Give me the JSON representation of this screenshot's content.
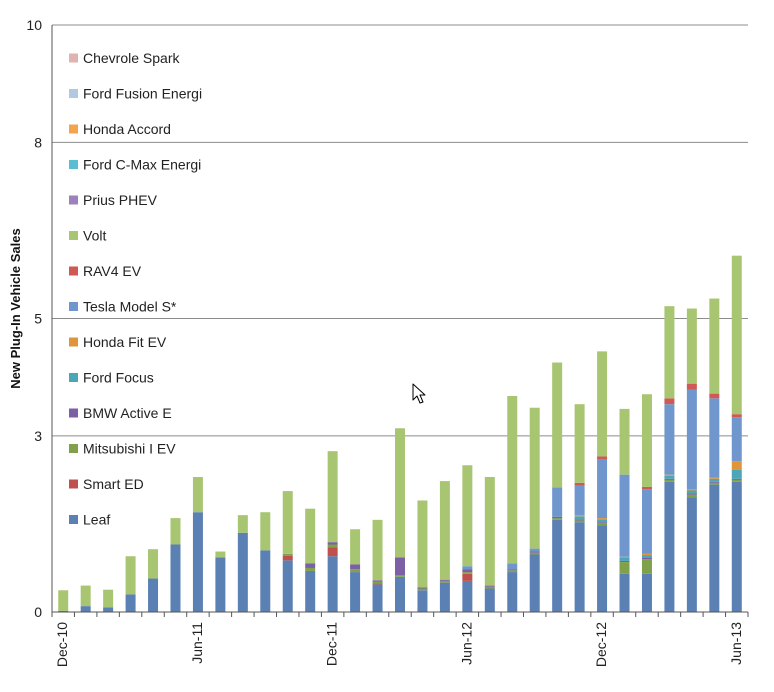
{
  "chart_data": {
    "type": "bar",
    "stacked": true,
    "title": "",
    "xlabel": "",
    "ylabel": "New Plug-In Vehicle Sales",
    "ylim": [
      0,
      10
    ],
    "yticks": [
      0,
      3,
      5,
      8,
      10
    ],
    "ytick_labels": [
      "0",
      "3",
      "5",
      "8",
      "10"
    ],
    "grid": "horizontal",
    "legend_position": "top-left",
    "categories": [
      "Dec-10",
      "Jan-11",
      "Feb-11",
      "Mar-11",
      "Apr-11",
      "May-11",
      "Jun-11",
      "Jul-11",
      "Aug-11",
      "Sep-11",
      "Oct-11",
      "Nov-11",
      "Dec-11",
      "Jan-12",
      "Feb-12",
      "Mar-12",
      "Apr-12",
      "May-12",
      "Jun-12",
      "Jul-12",
      "Aug-12",
      "Sep-12",
      "Oct-12",
      "Nov-12",
      "Dec-12",
      "Jan-13",
      "Feb-13",
      "Mar-13",
      "Apr-13",
      "May-13",
      "Jun-13"
    ],
    "xtick_labels": [
      {
        "index": 0,
        "label": "Dec-10"
      },
      {
        "index": 6,
        "label": "Jun-11"
      },
      {
        "index": 12,
        "label": "Dec-11"
      },
      {
        "index": 18,
        "label": "Jun-12"
      },
      {
        "index": 24,
        "label": "Dec-12"
      },
      {
        "index": 30,
        "label": "Jun-13"
      }
    ],
    "series": [
      {
        "name": "Leaf",
        "color": "#5b80b4",
        "values": [
          0.02,
          0.1,
          0.08,
          0.3,
          0.57,
          1.15,
          1.7,
          0.93,
          1.35,
          1.05,
          0.88,
          0.7,
          0.95,
          0.68,
          0.47,
          0.6,
          0.37,
          0.5,
          0.53,
          0.4,
          0.68,
          0.98,
          1.57,
          1.53,
          1.48,
          0.65,
          0.65,
          2.22,
          1.95,
          2.17,
          2.22
        ]
      },
      {
        "name": "Smart ED",
        "color": "#c0504d",
        "values": [
          0,
          0,
          0,
          0,
          0,
          0,
          0,
          0,
          0,
          0,
          0.08,
          0,
          0.15,
          0,
          0.02,
          0,
          0,
          0,
          0.12,
          0,
          0,
          0,
          0,
          0,
          0,
          0,
          0,
          0,
          0,
          0,
          0
        ]
      },
      {
        "name": "Mitsubishi I EV",
        "color": "#7fa14a",
        "values": [
          0,
          0,
          0,
          0,
          0,
          0,
          0,
          0,
          0,
          0,
          0.03,
          0.05,
          0.05,
          0.05,
          0.03,
          0.03,
          0.03,
          0.03,
          0.03,
          0.03,
          0.03,
          0.03,
          0.03,
          0.03,
          0.03,
          0.2,
          0.25,
          0.03,
          0.05,
          0.03,
          0.03
        ]
      },
      {
        "name": "BMW Active E",
        "color": "#7d5fa6",
        "values": [
          0,
          0,
          0,
          0,
          0,
          0,
          0,
          0,
          0,
          0,
          0,
          0.08,
          0.04,
          0.08,
          0.02,
          0.3,
          0.02,
          0.02,
          0.05,
          0.02,
          0.02,
          0.02,
          0.02,
          0.02,
          0.02,
          0.02,
          0.02,
          0.02,
          0.02,
          0.02,
          0.02
        ]
      },
      {
        "name": "Ford Focus",
        "color": "#4ba7b7",
        "values": [
          0,
          0,
          0,
          0,
          0,
          0,
          0,
          0,
          0,
          0,
          0,
          0,
          0,
          0,
          0,
          0,
          0,
          0,
          0,
          0,
          0,
          0,
          0,
          0.05,
          0.05,
          0.05,
          0.05,
          0.05,
          0.05,
          0.05,
          0.15
        ]
      },
      {
        "name": "Honda Fit EV",
        "color": "#e0953a",
        "values": [
          0,
          0,
          0,
          0,
          0,
          0,
          0,
          0,
          0,
          0,
          0,
          0,
          0,
          0,
          0,
          0,
          0,
          0,
          0,
          0,
          0,
          0,
          0,
          0.02,
          0.02,
          0.02,
          0.02,
          0.02,
          0.02,
          0.02,
          0.15
        ]
      },
      {
        "name": "Tesla Model S*",
        "color": "#6f97cd",
        "values": [
          0,
          0,
          0,
          0,
          0,
          0,
          0,
          0,
          0,
          0,
          0,
          0,
          0,
          0,
          0,
          0,
          0,
          0,
          0.05,
          0,
          0.1,
          0.05,
          0.5,
          0.5,
          1.0,
          1.4,
          1.1,
          1.2,
          1.7,
          1.35,
          0.75
        ]
      },
      {
        "name": "RAV4 EV",
        "color": "#cf5a55",
        "values": [
          0,
          0,
          0,
          0,
          0,
          0,
          0,
          0,
          0,
          0,
          0,
          0,
          0,
          0,
          0,
          0,
          0,
          0,
          0,
          0,
          0,
          0,
          0,
          0.05,
          0.05,
          0,
          0.04,
          0.1,
          0.1,
          0.08,
          0.05
        ]
      },
      {
        "name": "Volt",
        "color": "#a8c672",
        "values": [
          0.35,
          0.35,
          0.3,
          0.65,
          0.5,
          0.45,
          0.6,
          0.1,
          0.3,
          0.65,
          1.07,
          0.93,
          1.55,
          0.6,
          1.03,
          2.2,
          1.48,
          1.68,
          1.72,
          1.85,
          2.85,
          2.4,
          2.13,
          1.34,
          1.79,
          1.12,
          1.58,
          1.57,
          1.28,
          1.62,
          2.7
        ]
      },
      {
        "name": "Prius PHEV",
        "color": "#9c82bd",
        "values": [
          0,
          0,
          0,
          0,
          0,
          0,
          0,
          0,
          0,
          0,
          0,
          0,
          0,
          0,
          0,
          0,
          0,
          0,
          0,
          0,
          0,
          0,
          0,
          0,
          0,
          0,
          0,
          0,
          0,
          0,
          0
        ]
      },
      {
        "name": "Ford C-Max Energi",
        "color": "#5bbdd1",
        "values": [
          0,
          0,
          0,
          0,
          0,
          0,
          0,
          0,
          0,
          0,
          0,
          0,
          0,
          0,
          0,
          0,
          0,
          0,
          0,
          0,
          0,
          0,
          0,
          0,
          0,
          0,
          0,
          0,
          0,
          0,
          0
        ]
      },
      {
        "name": "Honda Accord",
        "color": "#f4a44c",
        "values": [
          0,
          0,
          0,
          0,
          0,
          0,
          0,
          0,
          0,
          0,
          0,
          0,
          0,
          0,
          0,
          0,
          0,
          0,
          0,
          0,
          0,
          0,
          0,
          0,
          0,
          0,
          0,
          0,
          0,
          0,
          0
        ]
      },
      {
        "name": "Ford Fusion Energi",
        "color": "#b4c7e0",
        "values": [
          0,
          0,
          0,
          0,
          0,
          0,
          0,
          0,
          0,
          0,
          0,
          0,
          0,
          0,
          0,
          0,
          0,
          0,
          0,
          0,
          0,
          0,
          0,
          0,
          0,
          0,
          0,
          0,
          0,
          0,
          0
        ]
      },
      {
        "name": "Chevrole Spark",
        "color": "#e0b3b3",
        "values": [
          0,
          0,
          0,
          0,
          0,
          0,
          0,
          0,
          0,
          0,
          0,
          0,
          0,
          0,
          0,
          0,
          0,
          0,
          0,
          0,
          0,
          0,
          0,
          0,
          0,
          0,
          0,
          0,
          0,
          0,
          0
        ]
      }
    ],
    "legend": [
      {
        "label": "Chevrole Spark",
        "color": "#e0b3b3"
      },
      {
        "label": "Ford Fusion Energi",
        "color": "#b4c7e0"
      },
      {
        "label": "Honda Accord",
        "color": "#f4a44c"
      },
      {
        "label": "Ford C-Max Energi",
        "color": "#5bbdd1"
      },
      {
        "label": "Prius PHEV",
        "color": "#9c82bd"
      },
      {
        "label": "Volt",
        "color": "#a8c672"
      },
      {
        "label": "RAV4 EV",
        "color": "#cf5a55"
      },
      {
        "label": "Tesla Model S*",
        "color": "#6f97cd"
      },
      {
        "label": "Honda Fit EV",
        "color": "#e0953a"
      },
      {
        "label": "Ford Focus",
        "color": "#4ba7b7"
      },
      {
        "label": "BMW Active E",
        "color": "#7d5fa6"
      },
      {
        "label": "Mitsubishi I EV",
        "color": "#7fa14a"
      },
      {
        "label": "Smart ED",
        "color": "#c0504d"
      },
      {
        "label": "Leaf",
        "color": "#5b80b4"
      }
    ]
  }
}
